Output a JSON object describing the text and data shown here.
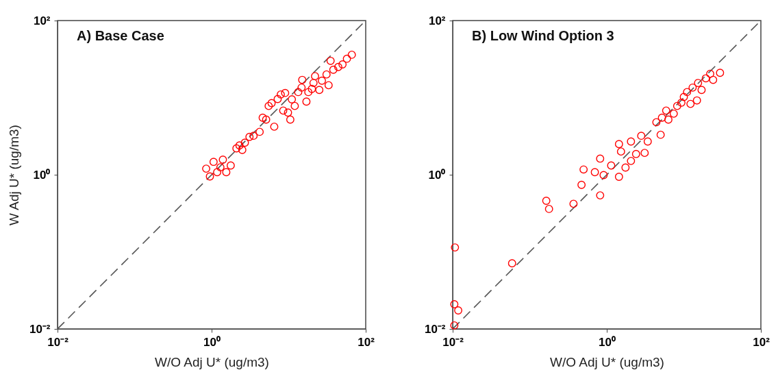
{
  "chart_data": [
    {
      "type": "scatter",
      "title": "A) Base Case",
      "xlabel": "W/O Adj U* (ug/m3)",
      "ylabel": "W Adj U* (ug/m3)",
      "log": "xy",
      "marker": "circle",
      "xlim": [
        0.01,
        100
      ],
      "ylim": [
        0.01,
        100
      ],
      "xticks": [
        {
          "value": 0.01,
          "label": "10⁻²"
        },
        {
          "value": 1,
          "label": "10⁰"
        },
        {
          "value": 100,
          "label": "10²"
        }
      ],
      "yticks": [
        {
          "value": 0.01,
          "label": "10⁻²"
        },
        {
          "value": 1,
          "label": "10⁰"
        },
        {
          "value": 100,
          "label": "10²"
        }
      ],
      "series": [
        {
          "type": "line",
          "line_style": "dashed",
          "marker": "none",
          "color": "#555555",
          "x": [
            0.01,
            100
          ],
          "values": [
            0.01,
            100
          ]
        },
        {
          "color": "#ff0000",
          "x": [
            0.95,
            1.06,
            1.18,
            1.4,
            1.55,
            1.77,
            2.1,
            2.5,
            2.7,
            3.1,
            3.5,
            4.2,
            5.1,
            5.5,
            6.5,
            7.2,
            7.9,
            8.5,
            9.8,
            10.5,
            12,
            13.3,
            14.7,
            17,
            18,
            21,
            22,
            25,
            27,
            31,
            33,
            38,
            44,
            50,
            57,
            66,
            0.85,
            1.3,
            2.3,
            4.6,
            6,
            9,
            11,
            15,
            20,
            35
          ],
          "values": [
            0.95,
            1.47,
            1.08,
            1.57,
            1.08,
            1.32,
            2.2,
            2.1,
            2.6,
            3.1,
            3.2,
            3.6,
            5.2,
            7.8,
            4.2,
            9.6,
            11,
            6.8,
            6.4,
            5.2,
            7.8,
            11.8,
            13.5,
            8.9,
            11.8,
            15.5,
            19,
            12.6,
            16.6,
            20,
            14.5,
            23,
            25,
            27,
            32,
            36,
            1.2,
            1.25,
            2.4,
            5.5,
            8.5,
            11.5,
            9.5,
            17,
            13,
            30
          ]
        }
      ]
    },
    {
      "type": "scatter",
      "title": "B) Low Wind Option 3",
      "xlabel": "W/O Adj U* (ug/m3)",
      "log": "xy",
      "marker": "circle",
      "xlim": [
        0.01,
        100
      ],
      "ylim": [
        0.01,
        100
      ],
      "xticks": [
        {
          "value": 0.01,
          "label": "10⁻²"
        },
        {
          "value": 1,
          "label": "10⁰"
        },
        {
          "value": 100,
          "label": "10²"
        }
      ],
      "yticks": [
        {
          "value": 0.01,
          "label": "10⁻²"
        },
        {
          "value": 1,
          "label": "10⁰"
        },
        {
          "value": 100,
          "label": "10²"
        }
      ],
      "series": [
        {
          "type": "line",
          "line_style": "dashed",
          "marker": "none",
          "color": "#555555",
          "x": [
            0.01,
            100
          ],
          "values": [
            0.01,
            100
          ]
        },
        {
          "color": "#ff0000",
          "x": [
            0.0105,
            0.0118,
            0.0105,
            0.0107,
            0.059,
            0.164,
            0.178,
            0.37,
            0.47,
            0.5,
            0.7,
            0.82,
            0.82,
            0.91,
            1.14,
            1.44,
            1.44,
            1.53,
            1.75,
            2.06,
            2.06,
            2.4,
            2.8,
            3.1,
            3.4,
            4.4,
            5,
            5.2,
            5.9,
            6.3,
            7.4,
            8.2,
            9.3,
            10,
            11,
            12.2,
            13,
            14.8,
            15.3,
            17,
            19.3,
            22,
            24,
            29.5
          ],
          "values": [
            0.0111,
            0.0174,
            0.0209,
            0.114,
            0.071,
            0.46,
            0.36,
            0.42,
            0.74,
            1.17,
            1.08,
            1.62,
            0.54,
            0.99,
            1.32,
            0.94,
            2.5,
            2,
            1.24,
            1.51,
            2.7,
            1.86,
            3.2,
            1.92,
            2.7,
            4.8,
            3.3,
            5.5,
            6.8,
            5.2,
            6.2,
            7.8,
            8.6,
            10.2,
            11.8,
            8.3,
            13.5,
            9.2,
            15.5,
            12.6,
            17.8,
            20.4,
            17,
            21
          ]
        }
      ]
    }
  ]
}
